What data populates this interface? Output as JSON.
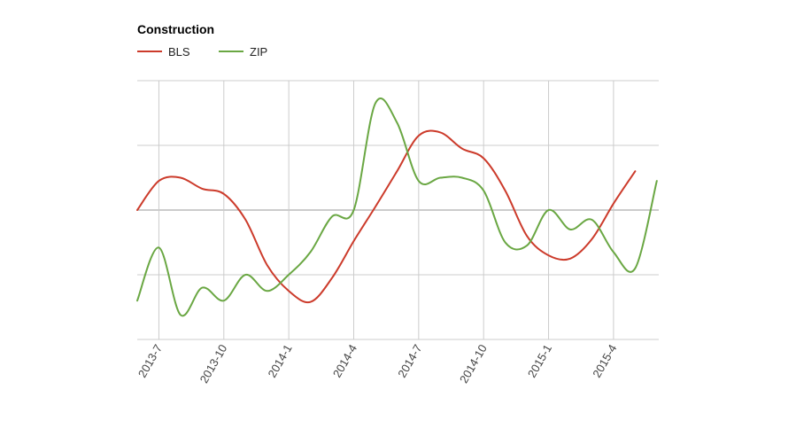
{
  "chart_data": {
    "type": "line",
    "title": "Construction",
    "legend_position": "top-left",
    "grid": true,
    "x_tick_labels": [
      "2013-7",
      "2013-10",
      "2014-1",
      "2014-4",
      "2014-7",
      "2014-10",
      "2015-1",
      "2015-4"
    ],
    "x_range": [
      "2013-6",
      "2015-7"
    ],
    "y_range": [
      0,
      4
    ],
    "series": [
      {
        "name": "BLS",
        "color": "#cc3b2b",
        "points": [
          {
            "x": "2013-6",
            "y": 2.0
          },
          {
            "x": "2013-7",
            "y": 2.45
          },
          {
            "x": "2013-8",
            "y": 2.5
          },
          {
            "x": "2013-9",
            "y": 2.33
          },
          {
            "x": "2013-10",
            "y": 2.25
          },
          {
            "x": "2013-11",
            "y": 1.85
          },
          {
            "x": "2013-12",
            "y": 1.15
          },
          {
            "x": "2014-1",
            "y": 0.75
          },
          {
            "x": "2014-2",
            "y": 0.58
          },
          {
            "x": "2014-3",
            "y": 0.95
          },
          {
            "x": "2014-4",
            "y": 1.52
          },
          {
            "x": "2014-5",
            "y": 2.05
          },
          {
            "x": "2014-6",
            "y": 2.6
          },
          {
            "x": "2014-7",
            "y": 3.15
          },
          {
            "x": "2014-8",
            "y": 3.2
          },
          {
            "x": "2014-9",
            "y": 2.95
          },
          {
            "x": "2014-10",
            "y": 2.8
          },
          {
            "x": "2014-11",
            "y": 2.3
          },
          {
            "x": "2014-12",
            "y": 1.6
          },
          {
            "x": "2015-1",
            "y": 1.3
          },
          {
            "x": "2015-2",
            "y": 1.25
          },
          {
            "x": "2015-3",
            "y": 1.55
          },
          {
            "x": "2015-4",
            "y": 2.1
          },
          {
            "x": "2015-5",
            "y": 2.6
          }
        ]
      },
      {
        "name": "ZIP",
        "color": "#6aa743",
        "points": [
          {
            "x": "2013-6",
            "y": 0.6
          },
          {
            "x": "2013-7",
            "y": 1.42
          },
          {
            "x": "2013-8",
            "y": 0.38
          },
          {
            "x": "2013-9",
            "y": 0.8
          },
          {
            "x": "2013-10",
            "y": 0.6
          },
          {
            "x": "2013-11",
            "y": 1.0
          },
          {
            "x": "2013-12",
            "y": 0.75
          },
          {
            "x": "2014-1",
            "y": 1.0
          },
          {
            "x": "2014-2",
            "y": 1.35
          },
          {
            "x": "2014-3",
            "y": 1.9
          },
          {
            "x": "2014-4",
            "y": 2.0
          },
          {
            "x": "2014-5",
            "y": 3.65
          },
          {
            "x": "2014-6",
            "y": 3.35
          },
          {
            "x": "2014-7",
            "y": 2.45
          },
          {
            "x": "2014-8",
            "y": 2.5
          },
          {
            "x": "2014-9",
            "y": 2.5
          },
          {
            "x": "2014-10",
            "y": 2.3
          },
          {
            "x": "2014-11",
            "y": 1.5
          },
          {
            "x": "2014-12",
            "y": 1.45
          },
          {
            "x": "2015-1",
            "y": 2.0
          },
          {
            "x": "2015-2",
            "y": 1.7
          },
          {
            "x": "2015-3",
            "y": 1.85
          },
          {
            "x": "2015-4",
            "y": 1.35
          },
          {
            "x": "2015-5",
            "y": 1.1
          },
          {
            "x": "2015-6",
            "y": 2.45
          }
        ]
      }
    ]
  }
}
